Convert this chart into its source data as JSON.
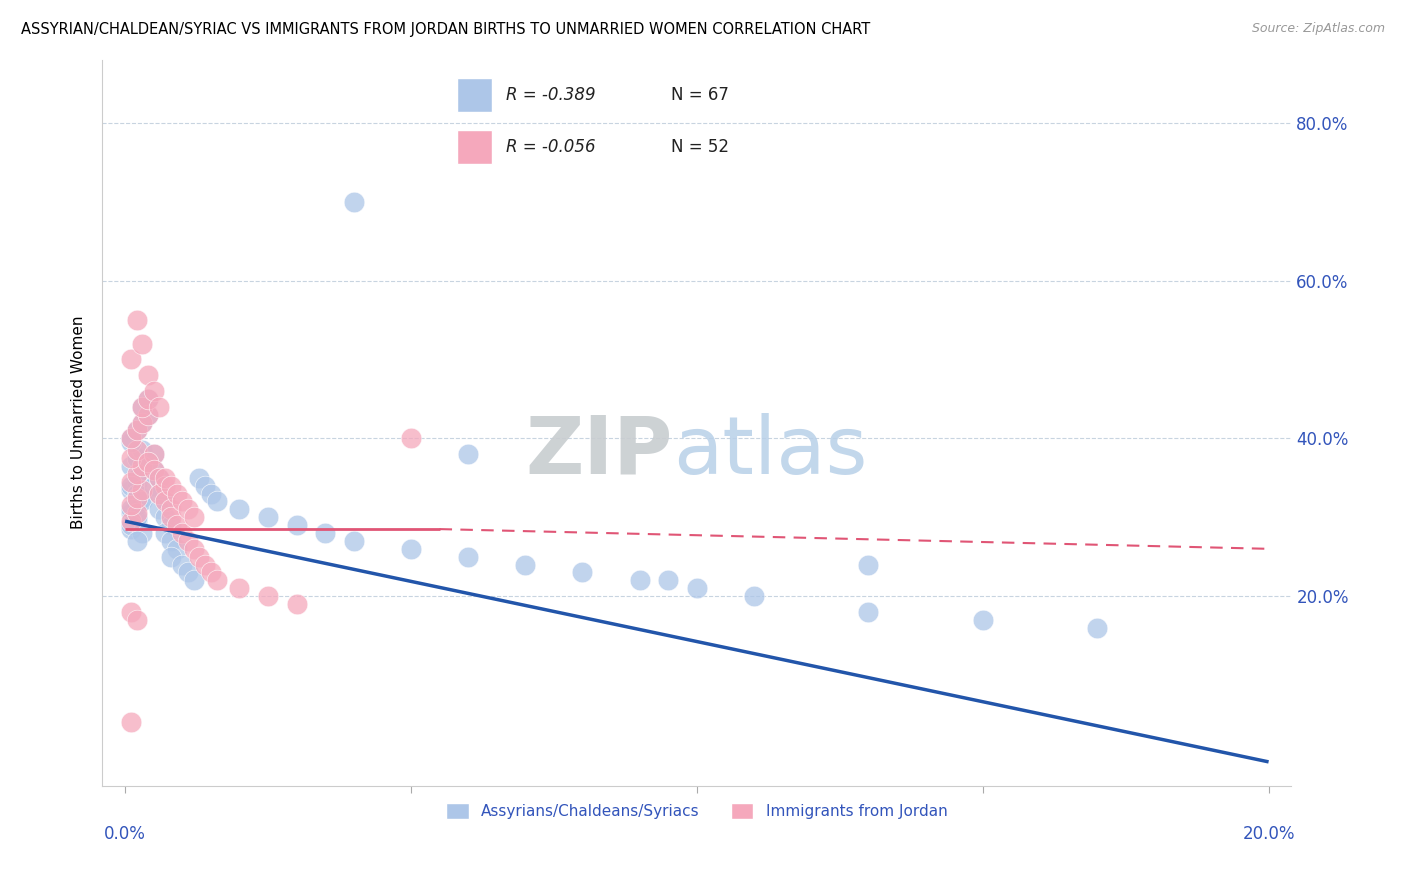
{
  "title": "ASSYRIAN/CHALDEAN/SYRIAC VS IMMIGRANTS FROM JORDAN BIRTHS TO UNMARRIED WOMEN CORRELATION CHART",
  "source": "Source: ZipAtlas.com",
  "ylabel": "Births to Unmarried Women",
  "right_yticks": [
    "80.0%",
    "60.0%",
    "40.0%",
    "20.0%"
  ],
  "right_ytick_vals": [
    0.8,
    0.6,
    0.4,
    0.2
  ],
  "legend_blue_label": "Assyrians/Chaldeans/Syriacs",
  "legend_pink_label": "Immigrants from Jordan",
  "legend_R_blue": "R = -0.389",
  "legend_N_blue": "N = 67",
  "legend_R_pink": "R = -0.056",
  "legend_N_pink": "N = 52",
  "watermark_zip": "ZIP",
  "watermark_atlas": "atlas",
  "blue_color": "#adc6e8",
  "pink_color": "#f5a8bc",
  "blue_line_color": "#2255aa",
  "pink_line_color": "#e05575",
  "axis_color": "#3355bb",
  "grid_color": "#c8d4e0",
  "blue_scatter_x": [
    0.001,
    0.002,
    0.001,
    0.002,
    0.003,
    0.001,
    0.002,
    0.003,
    0.001,
    0.002,
    0.003,
    0.001,
    0.002,
    0.001,
    0.002,
    0.003,
    0.001,
    0.002,
    0.001,
    0.003,
    0.002,
    0.001,
    0.002,
    0.003,
    0.004,
    0.003,
    0.004,
    0.005,
    0.004,
    0.005,
    0.006,
    0.005,
    0.006,
    0.007,
    0.006,
    0.007,
    0.008,
    0.007,
    0.008,
    0.009,
    0.008,
    0.01,
    0.011,
    0.012,
    0.013,
    0.014,
    0.015,
    0.016,
    0.02,
    0.025,
    0.03,
    0.035,
    0.04,
    0.05,
    0.06,
    0.07,
    0.08,
    0.09,
    0.1,
    0.11,
    0.13,
    0.15,
    0.17,
    0.13,
    0.095,
    0.06,
    0.04
  ],
  "blue_scatter_y": [
    0.285,
    0.295,
    0.305,
    0.315,
    0.325,
    0.335,
    0.345,
    0.355,
    0.365,
    0.375,
    0.385,
    0.395,
    0.35,
    0.34,
    0.33,
    0.32,
    0.31,
    0.3,
    0.29,
    0.28,
    0.27,
    0.4,
    0.41,
    0.42,
    0.43,
    0.44,
    0.45,
    0.38,
    0.37,
    0.36,
    0.35,
    0.34,
    0.33,
    0.32,
    0.31,
    0.3,
    0.29,
    0.28,
    0.27,
    0.26,
    0.25,
    0.24,
    0.23,
    0.22,
    0.35,
    0.34,
    0.33,
    0.32,
    0.31,
    0.3,
    0.29,
    0.28,
    0.27,
    0.26,
    0.25,
    0.24,
    0.23,
    0.22,
    0.21,
    0.2,
    0.18,
    0.17,
    0.16,
    0.24,
    0.22,
    0.38,
    0.7
  ],
  "pink_scatter_x": [
    0.001,
    0.002,
    0.001,
    0.002,
    0.003,
    0.001,
    0.002,
    0.003,
    0.001,
    0.002,
    0.001,
    0.002,
    0.003,
    0.004,
    0.003,
    0.004,
    0.005,
    0.004,
    0.005,
    0.006,
    0.007,
    0.006,
    0.007,
    0.008,
    0.008,
    0.009,
    0.01,
    0.011,
    0.012,
    0.013,
    0.014,
    0.015,
    0.016,
    0.02,
    0.025,
    0.03,
    0.001,
    0.002,
    0.003,
    0.004,
    0.005,
    0.006,
    0.007,
    0.008,
    0.009,
    0.01,
    0.011,
    0.012,
    0.001,
    0.002,
    0.001,
    0.05
  ],
  "pink_scatter_y": [
    0.295,
    0.305,
    0.315,
    0.325,
    0.335,
    0.345,
    0.355,
    0.365,
    0.375,
    0.385,
    0.4,
    0.41,
    0.42,
    0.43,
    0.44,
    0.45,
    0.38,
    0.37,
    0.36,
    0.35,
    0.34,
    0.33,
    0.32,
    0.31,
    0.3,
    0.29,
    0.28,
    0.27,
    0.26,
    0.25,
    0.24,
    0.23,
    0.22,
    0.21,
    0.2,
    0.19,
    0.5,
    0.55,
    0.52,
    0.48,
    0.46,
    0.44,
    0.35,
    0.34,
    0.33,
    0.32,
    0.31,
    0.3,
    0.18,
    0.17,
    0.04,
    0.4
  ],
  "xlim": [
    -0.004,
    0.204
  ],
  "ylim": [
    -0.04,
    0.88
  ],
  "blue_trend_x0": 0.0,
  "blue_trend_y0": 0.295,
  "blue_trend_x1": 0.2,
  "blue_trend_y1": -0.01,
  "pink_trend_solid_x0": 0.0,
  "pink_trend_solid_y0": 0.285,
  "pink_trend_solid_x1": 0.055,
  "pink_trend_solid_y1": 0.285,
  "pink_trend_dash_x0": 0.055,
  "pink_trend_dash_y0": 0.285,
  "pink_trend_dash_x1": 0.2,
  "pink_trend_dash_y1": 0.26
}
